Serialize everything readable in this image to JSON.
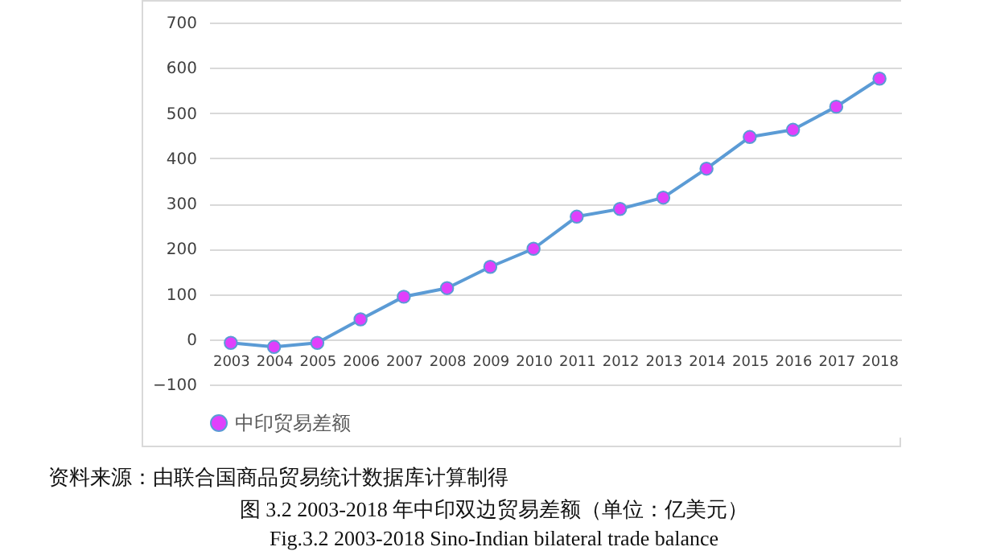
{
  "chart_data": {
    "type": "line",
    "categories": [
      "2003",
      "2004",
      "2005",
      "2006",
      "2007",
      "2008",
      "2009",
      "2010",
      "2011",
      "2012",
      "2013",
      "2014",
      "2015",
      "2016",
      "2017",
      "2018"
    ],
    "series": [
      {
        "name": "中印贸易差额",
        "color": "#5b9bd5",
        "values": [
          -8,
          -17,
          -8,
          44,
          94,
          113,
          160,
          200,
          271,
          288,
          313,
          377,
          447,
          463,
          514,
          576
        ]
      }
    ],
    "ylim": [
      -100,
      700
    ],
    "yticks": [
      -100,
      0,
      100,
      200,
      300,
      400,
      500,
      600,
      700
    ],
    "grid": "y",
    "legend": "bottom",
    "marker": "circle",
    "line_style": "solid",
    "annotations": [
      "资料来源：由联合国商品贸易统计数据库计算制得",
      "图 3.2 2003-2018 年中印双边贸易差额（单位：亿美元）",
      "Fig.3.2 2003-2018 Sino-Indian bilateral trade balance"
    ]
  }
}
